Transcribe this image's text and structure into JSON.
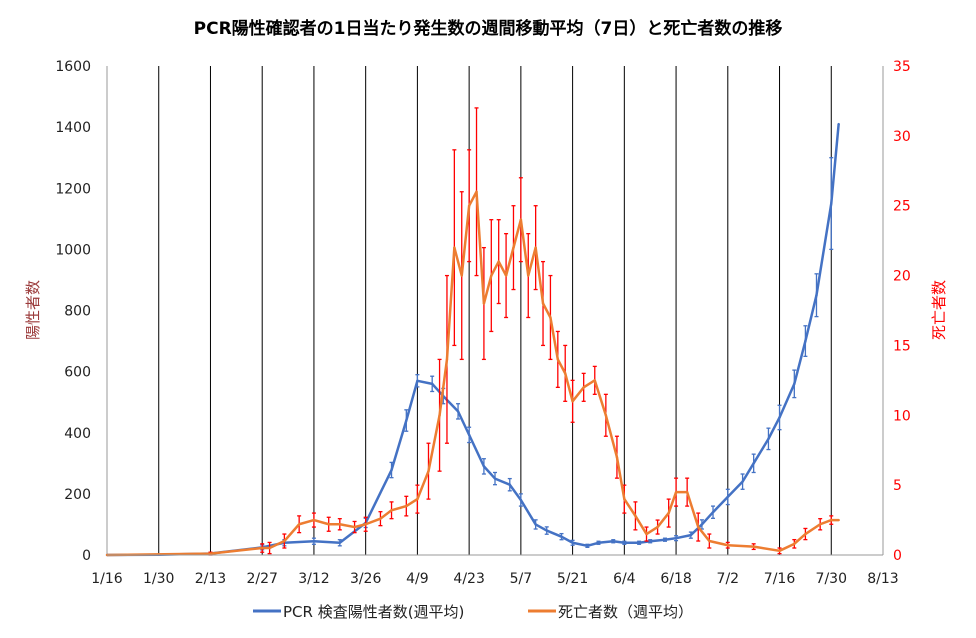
{
  "chart_data": {
    "type": "line",
    "title": "PCR陽性確認者の1日当たり発生数の週間移動平均（7日）と死亡者数の推移",
    "ylabel": "陽性者数",
    "y2label": "死亡者数",
    "ylim": [
      0,
      1600
    ],
    "y2lim": [
      0,
      35
    ],
    "yticks": [
      "0",
      "200",
      "400",
      "600",
      "800",
      "1000",
      "1200",
      "1400",
      "1600"
    ],
    "y2ticks": [
      "0",
      "5",
      "10",
      "15",
      "20",
      "25",
      "30",
      "35"
    ],
    "xlim_days": [
      0,
      210
    ],
    "xtick_labels": [
      "1/16",
      "1/30",
      "2/13",
      "2/27",
      "3/12",
      "3/26",
      "4/9",
      "4/23",
      "5/7",
      "5/21",
      "6/4",
      "6/18",
      "7/2",
      "7/16",
      "7/30",
      "8/13"
    ],
    "x_unit": "days since 1/16",
    "grid": "vertical",
    "legend": "bottom",
    "series": [
      {
        "name": "PCR 検査陽性者数(週平均)",
        "axis": "left",
        "color": "#4472c4",
        "points": [
          [
            0,
            0,
            0
          ],
          [
            14,
            1,
            1
          ],
          [
            28,
            5,
            3
          ],
          [
            42,
            25,
            8
          ],
          [
            48,
            40,
            10
          ],
          [
            56,
            45,
            10
          ],
          [
            63,
            40,
            10
          ],
          [
            70,
            105,
            15
          ],
          [
            77,
            278,
            25
          ],
          [
            81,
            440,
            35
          ],
          [
            84,
            570,
            20
          ],
          [
            88,
            560,
            25
          ],
          [
            91,
            520,
            25
          ],
          [
            95,
            470,
            25
          ],
          [
            98,
            393,
            25
          ],
          [
            102,
            290,
            25
          ],
          [
            105,
            250,
            20
          ],
          [
            109,
            230,
            20
          ],
          [
            112,
            180,
            20
          ],
          [
            116,
            100,
            15
          ],
          [
            119,
            80,
            12
          ],
          [
            123,
            60,
            10
          ],
          [
            126,
            40,
            8
          ],
          [
            130,
            30,
            5
          ],
          [
            133,
            40,
            5
          ],
          [
            137,
            45,
            5
          ],
          [
            140,
            40,
            5
          ],
          [
            144,
            40,
            5
          ],
          [
            147,
            45,
            5
          ],
          [
            151,
            50,
            5
          ],
          [
            154,
            55,
            8
          ],
          [
            158,
            65,
            10
          ],
          [
            161,
            100,
            15
          ],
          [
            164,
            140,
            20
          ],
          [
            168,
            190,
            25
          ],
          [
            172,
            240,
            25
          ],
          [
            175,
            300,
            30
          ],
          [
            179,
            380,
            35
          ],
          [
            182,
            450,
            40
          ],
          [
            186,
            560,
            45
          ],
          [
            189,
            700,
            50
          ],
          [
            192,
            850,
            70
          ],
          [
            196,
            1150,
            150
          ],
          [
            198,
            1410,
            0
          ]
        ]
      },
      {
        "name": "死亡者数（週平均）",
        "axis": "right",
        "color": "#ed7d31",
        "errcolor": "#ff0000",
        "points": [
          [
            0,
            0,
            0
          ],
          [
            28,
            0.1,
            0.1
          ],
          [
            42,
            0.5,
            0.3
          ],
          [
            44,
            0.5,
            0.4
          ],
          [
            48,
            1,
            0.5
          ],
          [
            52,
            2.2,
            0.6
          ],
          [
            56,
            2.5,
            0.5
          ],
          [
            60,
            2.2,
            0.5
          ],
          [
            63,
            2.2,
            0.4
          ],
          [
            67,
            2,
            0.4
          ],
          [
            70,
            2.2,
            0.5
          ],
          [
            74,
            2.6,
            0.5
          ],
          [
            77,
            3.2,
            0.6
          ],
          [
            81,
            3.5,
            0.7
          ],
          [
            84,
            4,
            1
          ],
          [
            87,
            6,
            2
          ],
          [
            90,
            10,
            4
          ],
          [
            92,
            14,
            6
          ],
          [
            94,
            22,
            7
          ],
          [
            96,
            20,
            6
          ],
          [
            98,
            25,
            4
          ],
          [
            100,
            26,
            6
          ],
          [
            102,
            18,
            4
          ],
          [
            104,
            20,
            4
          ],
          [
            106,
            21,
            3
          ],
          [
            108,
            20,
            3
          ],
          [
            110,
            22,
            3
          ],
          [
            112,
            24,
            3
          ],
          [
            114,
            20,
            3
          ],
          [
            116,
            22,
            3
          ],
          [
            118,
            18,
            3
          ],
          [
            120,
            17,
            3
          ],
          [
            122,
            14,
            2
          ],
          [
            124,
            13,
            2
          ],
          [
            126,
            11,
            1.5
          ],
          [
            129,
            12,
            1
          ],
          [
            132,
            12.5,
            1
          ],
          [
            135,
            10,
            1.5
          ],
          [
            138,
            7,
            1.5
          ],
          [
            140,
            4,
            1
          ],
          [
            143,
            2.8,
            1
          ],
          [
            146,
            1.5,
            0.5
          ],
          [
            149,
            2,
            0.5
          ],
          [
            152,
            3,
            1
          ],
          [
            154,
            4.5,
            1
          ],
          [
            157,
            4.5,
            1
          ],
          [
            160,
            2,
            1
          ],
          [
            163,
            1,
            0.5
          ],
          [
            168,
            0.7,
            0.2
          ],
          [
            175,
            0.6,
            0.2
          ],
          [
            182,
            0.3,
            0.2
          ],
          [
            186,
            0.8,
            0.3
          ],
          [
            189,
            1.5,
            0.4
          ],
          [
            193,
            2.2,
            0.4
          ],
          [
            196,
            2.5,
            0.3
          ],
          [
            198,
            2.5,
            0
          ]
        ]
      }
    ]
  }
}
